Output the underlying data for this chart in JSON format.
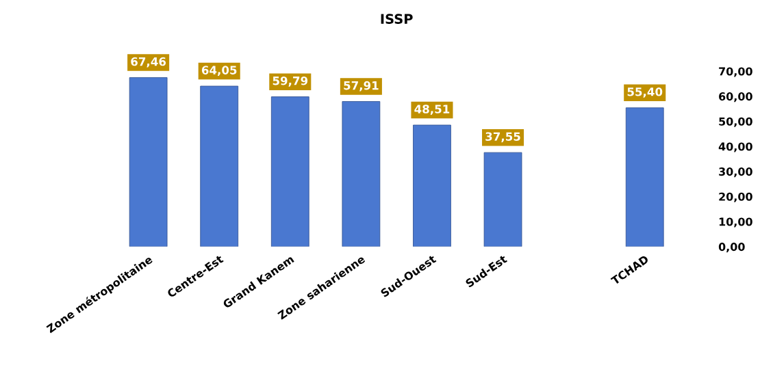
{
  "chart_data": {
    "type": "bar",
    "title": "ISSP",
    "categories": [
      "Zone métropolitaine",
      "Centre-Est",
      "Grand Kanem",
      "Zone saharienne",
      "Sud-Ouest",
      "Sud-Est",
      null,
      "TCHAD"
    ],
    "values": [
      67.46,
      64.05,
      59.79,
      57.91,
      48.51,
      37.55,
      null,
      55.4
    ],
    "value_labels": [
      "67,46",
      "64,05",
      "59,79",
      "57,91",
      "48,51",
      "37,55",
      null,
      "55,40"
    ],
    "color": "#4a78d0",
    "ylim": [
      0,
      70
    ],
    "yticks": [
      {
        "value": 0,
        "label": "0,00"
      },
      {
        "value": 10,
        "label": "10,00"
      },
      {
        "value": 20,
        "label": "20,00"
      },
      {
        "value": 30,
        "label": "30,00"
      },
      {
        "value": 40,
        "label": "40,00"
      },
      {
        "value": 50,
        "label": "50,00"
      },
      {
        "value": 60,
        "label": "60,00"
      },
      {
        "value": 70,
        "label": "70,00"
      }
    ],
    "grid": false,
    "legend": false
  }
}
